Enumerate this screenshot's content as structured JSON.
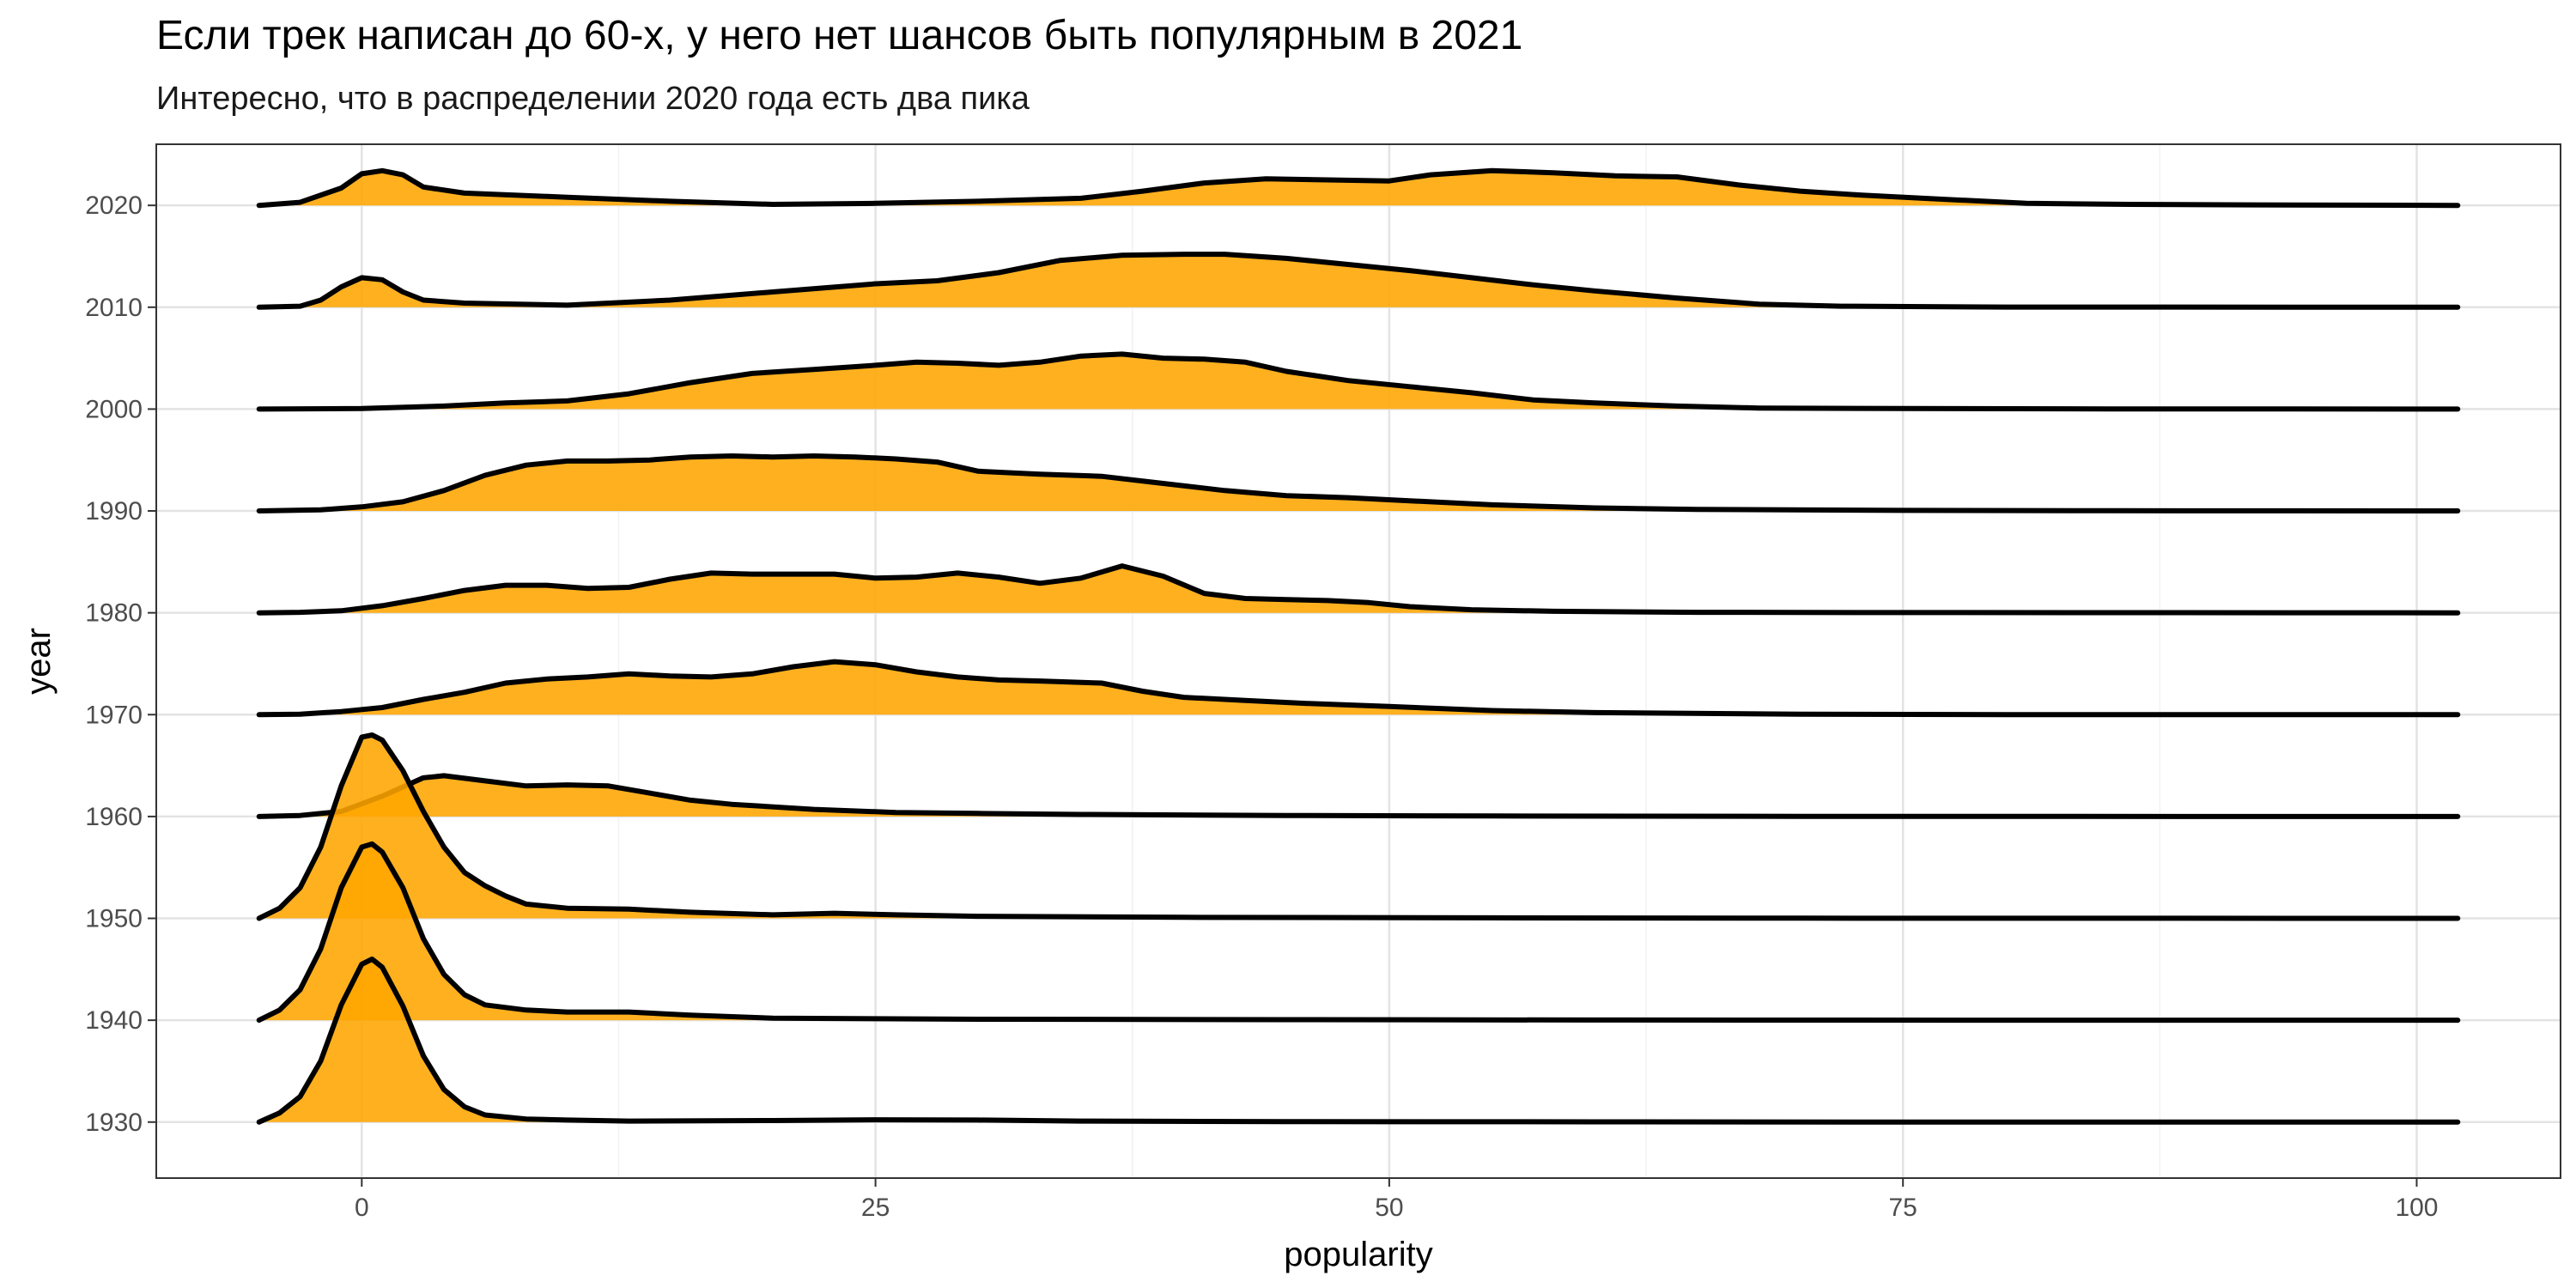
{
  "title": "Если трек написан до 60-х, у него нет шансов быть популярным в 2021",
  "subtitle": "Интересно, что в распределении 2020 года есть два пика",
  "chart_data": {
    "type": "ridgeline",
    "xlabel": "popularity",
    "ylabel": "year",
    "xlim": [
      -10,
      107
    ],
    "x_ticks": [
      0,
      25,
      50,
      75,
      100
    ],
    "x_tick_labels": [
      "0",
      "25",
      "50",
      "75",
      "100"
    ],
    "y_ticks": [
      1930,
      1940,
      1950,
      1960,
      1970,
      1980,
      1990,
      2000,
      2010,
      2020
    ],
    "y_tick_labels": [
      "1930",
      "1940",
      "1950",
      "1960",
      "1970",
      "1980",
      "1990",
      "2000",
      "2010",
      "2020"
    ],
    "ylim": [
      1924.5,
      2026
    ],
    "grid": true,
    "fill_color": "#FFA500",
    "line_color": "#000000",
    "x_range": [
      -5,
      102
    ],
    "series": [
      {
        "name": "1930",
        "points": [
          [
            -5,
            0
          ],
          [
            -4,
            0.9
          ],
          [
            -3,
            2.5
          ],
          [
            -2,
            6.0
          ],
          [
            -1,
            11.5
          ],
          [
            0,
            15.5
          ],
          [
            0.5,
            16.0
          ],
          [
            1,
            15.2
          ],
          [
            2,
            11.4
          ],
          [
            3,
            6.5
          ],
          [
            4,
            3.2
          ],
          [
            5,
            1.5
          ],
          [
            6,
            0.7
          ],
          [
            8,
            0.3
          ],
          [
            10,
            0.2
          ],
          [
            13,
            0.1
          ],
          [
            20,
            0.15
          ],
          [
            25,
            0.22
          ],
          [
            30,
            0.2
          ],
          [
            35,
            0.1
          ],
          [
            45,
            0.05
          ],
          [
            60,
            0.02
          ],
          [
            80,
            0
          ],
          [
            102,
            0
          ]
        ]
      },
      {
        "name": "1940",
        "points": [
          [
            -5,
            0
          ],
          [
            -4,
            1.0
          ],
          [
            -3,
            3.0
          ],
          [
            -2,
            7.0
          ],
          [
            -1,
            13.0
          ],
          [
            0,
            17.0
          ],
          [
            0.5,
            17.3
          ],
          [
            1,
            16.5
          ],
          [
            2,
            13.0
          ],
          [
            3,
            8.0
          ],
          [
            4,
            4.5
          ],
          [
            5,
            2.5
          ],
          [
            6,
            1.5
          ],
          [
            8,
            1.0
          ],
          [
            10,
            0.8
          ],
          [
            13,
            0.8
          ],
          [
            16,
            0.5
          ],
          [
            20,
            0.2
          ],
          [
            30,
            0.1
          ],
          [
            45,
            0.05
          ],
          [
            60,
            0.02
          ],
          [
            80,
            0
          ],
          [
            102,
            0
          ]
        ]
      },
      {
        "name": "1950",
        "points": [
          [
            -5,
            0
          ],
          [
            -4,
            1.0
          ],
          [
            -3,
            3.0
          ],
          [
            -2,
            7.0
          ],
          [
            -1,
            13.0
          ],
          [
            0,
            17.8
          ],
          [
            0.5,
            18.0
          ],
          [
            1,
            17.5
          ],
          [
            2,
            14.5
          ],
          [
            3,
            10.5
          ],
          [
            4,
            7.0
          ],
          [
            5,
            4.5
          ],
          [
            6,
            3.2
          ],
          [
            7,
            2.2
          ],
          [
            8,
            1.4
          ],
          [
            10,
            1.0
          ],
          [
            13,
            0.9
          ],
          [
            16,
            0.6
          ],
          [
            20,
            0.35
          ],
          [
            23,
            0.5
          ],
          [
            26,
            0.35
          ],
          [
            30,
            0.2
          ],
          [
            40,
            0.1
          ],
          [
            55,
            0.05
          ],
          [
            70,
            0.02
          ],
          [
            102,
            0
          ]
        ]
      },
      {
        "name": "1960",
        "points": [
          [
            -5,
            0
          ],
          [
            -3,
            0.1
          ],
          [
            -1,
            0.5
          ],
          [
            1,
            2.0
          ],
          [
            3,
            3.8
          ],
          [
            4,
            4.0
          ],
          [
            6,
            3.5
          ],
          [
            8,
            3.0
          ],
          [
            10,
            3.1
          ],
          [
            12,
            3.0
          ],
          [
            14,
            2.3
          ],
          [
            16,
            1.6
          ],
          [
            18,
            1.2
          ],
          [
            22,
            0.7
          ],
          [
            26,
            0.4
          ],
          [
            30,
            0.3
          ],
          [
            35,
            0.2
          ],
          [
            45,
            0.1
          ],
          [
            55,
            0.05
          ],
          [
            70,
            0.02
          ],
          [
            102,
            0
          ]
        ]
      },
      {
        "name": "1970",
        "points": [
          [
            -5,
            0
          ],
          [
            -3,
            0.05
          ],
          [
            -1,
            0.3
          ],
          [
            1,
            0.7
          ],
          [
            3,
            1.5
          ],
          [
            5,
            2.2
          ],
          [
            7,
            3.1
          ],
          [
            9,
            3.5
          ],
          [
            11,
            3.7
          ],
          [
            13,
            4.0
          ],
          [
            15,
            3.8
          ],
          [
            17,
            3.7
          ],
          [
            19,
            4.0
          ],
          [
            21,
            4.7
          ],
          [
            23,
            5.2
          ],
          [
            25,
            4.9
          ],
          [
            27,
            4.2
          ],
          [
            29,
            3.7
          ],
          [
            31,
            3.4
          ],
          [
            33,
            3.3
          ],
          [
            36,
            3.1
          ],
          [
            38,
            2.3
          ],
          [
            40,
            1.7
          ],
          [
            43,
            1.4
          ],
          [
            46,
            1.1
          ],
          [
            50,
            0.8
          ],
          [
            55,
            0.4
          ],
          [
            60,
            0.2
          ],
          [
            70,
            0.05
          ],
          [
            80,
            0
          ],
          [
            102,
            0
          ]
        ]
      },
      {
        "name": "1980",
        "points": [
          [
            -5,
            0
          ],
          [
            -3,
            0.05
          ],
          [
            -1,
            0.2
          ],
          [
            1,
            0.7
          ],
          [
            3,
            1.4
          ],
          [
            5,
            2.2
          ],
          [
            7,
            2.7
          ],
          [
            9,
            2.7
          ],
          [
            11,
            2.4
          ],
          [
            13,
            2.5
          ],
          [
            15,
            3.3
          ],
          [
            17,
            3.9
          ],
          [
            19,
            3.8
          ],
          [
            21,
            3.8
          ],
          [
            23,
            3.8
          ],
          [
            25,
            3.4
          ],
          [
            27,
            3.5
          ],
          [
            29,
            3.9
          ],
          [
            31,
            3.5
          ],
          [
            33,
            2.9
          ],
          [
            35,
            3.4
          ],
          [
            37,
            4.6
          ],
          [
            39,
            3.6
          ],
          [
            41,
            1.9
          ],
          [
            43,
            1.4
          ],
          [
            45,
            1.3
          ],
          [
            47,
            1.2
          ],
          [
            49,
            1.0
          ],
          [
            51,
            0.6
          ],
          [
            54,
            0.3
          ],
          [
            58,
            0.15
          ],
          [
            65,
            0.05
          ],
          [
            75,
            0.02
          ],
          [
            102,
            0
          ]
        ]
      },
      {
        "name": "1990",
        "points": [
          [
            -5,
            0
          ],
          [
            -2,
            0.1
          ],
          [
            0,
            0.4
          ],
          [
            2,
            0.9
          ],
          [
            4,
            2.0
          ],
          [
            6,
            3.5
          ],
          [
            8,
            4.5
          ],
          [
            10,
            4.9
          ],
          [
            12,
            4.9
          ],
          [
            14,
            5.0
          ],
          [
            16,
            5.3
          ],
          [
            18,
            5.4
          ],
          [
            20,
            5.3
          ],
          [
            22,
            5.4
          ],
          [
            24,
            5.3
          ],
          [
            26,
            5.1
          ],
          [
            28,
            4.8
          ],
          [
            30,
            3.9
          ],
          [
            33,
            3.6
          ],
          [
            36,
            3.4
          ],
          [
            39,
            2.7
          ],
          [
            42,
            2.0
          ],
          [
            45,
            1.5
          ],
          [
            48,
            1.3
          ],
          [
            51,
            1.0
          ],
          [
            55,
            0.6
          ],
          [
            60,
            0.3
          ],
          [
            65,
            0.15
          ],
          [
            75,
            0.05
          ],
          [
            85,
            0.02
          ],
          [
            102,
            0
          ]
        ]
      },
      {
        "name": "2000",
        "points": [
          [
            -5,
            0
          ],
          [
            0,
            0.05
          ],
          [
            4,
            0.3
          ],
          [
            7,
            0.6
          ],
          [
            10,
            0.8
          ],
          [
            13,
            1.5
          ],
          [
            16,
            2.6
          ],
          [
            19,
            3.5
          ],
          [
            22,
            3.9
          ],
          [
            25,
            4.3
          ],
          [
            27,
            4.6
          ],
          [
            29,
            4.5
          ],
          [
            31,
            4.3
          ],
          [
            33,
            4.6
          ],
          [
            35,
            5.2
          ],
          [
            37,
            5.4
          ],
          [
            39,
            5.0
          ],
          [
            41,
            4.9
          ],
          [
            43,
            4.6
          ],
          [
            45,
            3.7
          ],
          [
            48,
            2.8
          ],
          [
            51,
            2.2
          ],
          [
            54,
            1.6
          ],
          [
            57,
            0.9
          ],
          [
            60,
            0.6
          ],
          [
            64,
            0.3
          ],
          [
            68,
            0.1
          ],
          [
            75,
            0.05
          ],
          [
            85,
            0.02
          ],
          [
            102,
            0
          ]
        ]
      },
      {
        "name": "2010",
        "points": [
          [
            -5,
            0
          ],
          [
            -3,
            0.1
          ],
          [
            -2,
            0.7
          ],
          [
            -1,
            2.0
          ],
          [
            0,
            2.9
          ],
          [
            1,
            2.7
          ],
          [
            2,
            1.5
          ],
          [
            3,
            0.7
          ],
          [
            5,
            0.4
          ],
          [
            10,
            0.2
          ],
          [
            15,
            0.7
          ],
          [
            20,
            1.5
          ],
          [
            25,
            2.3
          ],
          [
            28,
            2.6
          ],
          [
            31,
            3.4
          ],
          [
            34,
            4.6
          ],
          [
            37,
            5.1
          ],
          [
            40,
            5.2
          ],
          [
            42,
            5.2
          ],
          [
            45,
            4.8
          ],
          [
            48,
            4.2
          ],
          [
            51,
            3.6
          ],
          [
            54,
            2.9
          ],
          [
            57,
            2.2
          ],
          [
            60,
            1.6
          ],
          [
            64,
            0.9
          ],
          [
            68,
            0.3
          ],
          [
            72,
            0.1
          ],
          [
            80,
            0.02
          ],
          [
            102,
            0
          ]
        ]
      },
      {
        "name": "2020",
        "points": [
          [
            -5,
            0
          ],
          [
            -3,
            0.3
          ],
          [
            -1,
            1.7
          ],
          [
            0,
            3.1
          ],
          [
            1,
            3.4
          ],
          [
            2,
            3.0
          ],
          [
            3,
            1.8
          ],
          [
            5,
            1.2
          ],
          [
            10,
            0.8
          ],
          [
            15,
            0.4
          ],
          [
            20,
            0.1
          ],
          [
            25,
            0.2
          ],
          [
            30,
            0.4
          ],
          [
            35,
            0.7
          ],
          [
            38,
            1.4
          ],
          [
            41,
            2.2
          ],
          [
            44,
            2.6
          ],
          [
            47,
            2.5
          ],
          [
            50,
            2.4
          ],
          [
            52,
            3.0
          ],
          [
            55,
            3.4
          ],
          [
            58,
            3.2
          ],
          [
            61,
            2.9
          ],
          [
            64,
            2.8
          ],
          [
            67,
            2.0
          ],
          [
            70,
            1.4
          ],
          [
            73,
            1.0
          ],
          [
            77,
            0.6
          ],
          [
            81,
            0.2
          ],
          [
            86,
            0.1
          ],
          [
            92,
            0.05
          ],
          [
            102,
            0
          ]
        ]
      }
    ]
  }
}
